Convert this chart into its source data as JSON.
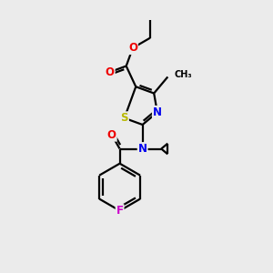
{
  "bg_color": "#ebebeb",
  "bond_color": "#000000",
  "atom_colors": {
    "S": "#b8b800",
    "N": "#0000ee",
    "O": "#ee0000",
    "F": "#cc00cc",
    "C": "#000000"
  },
  "font_size": 8.5,
  "lw": 1.6
}
